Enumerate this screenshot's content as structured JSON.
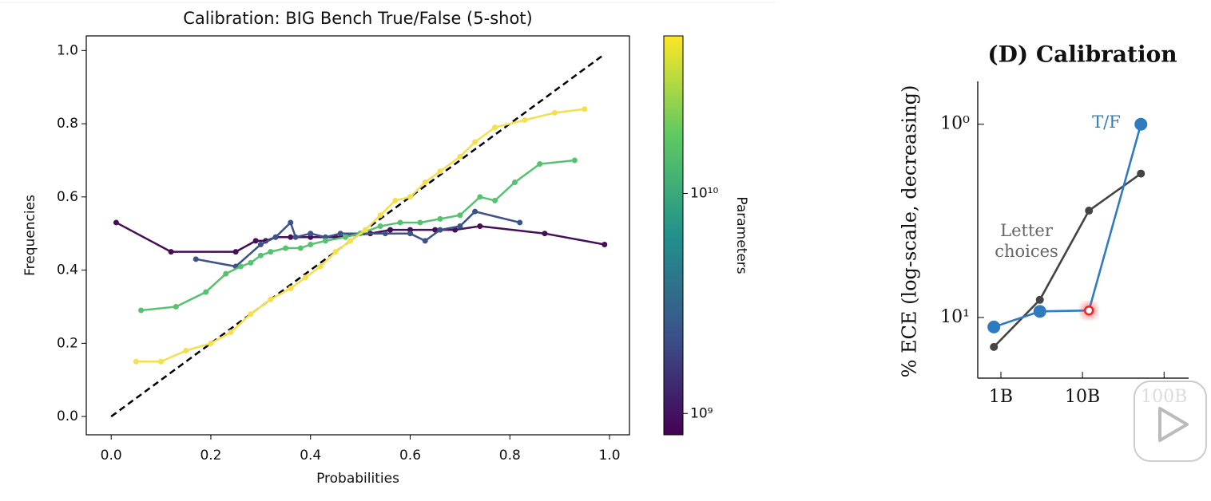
{
  "chart_data": [
    {
      "type": "line",
      "title": "Calibration: BIG Bench True/False (5-shot)",
      "x_label": "Probabilities",
      "y_label": "Frequencies",
      "xlim": [
        -0.05,
        1.04
      ],
      "ylim": [
        -0.05,
        1.04
      ],
      "xticks": [
        {
          "value": 0,
          "label": "0.0"
        },
        0.2,
        0.4,
        0.6,
        0.8,
        {
          "value": 1,
          "label": "1.0"
        }
      ],
      "yticks": [
        {
          "value": 0,
          "label": "0.0"
        },
        0.2,
        0.4,
        0.6,
        0.8,
        {
          "value": 1,
          "label": "1.0"
        }
      ],
      "colorbar": {
        "label": "Parameters",
        "scale": "log",
        "lim": [
          800000000,
          52000000000
        ],
        "ticks": [
          {
            "value": 1000000000,
            "label": "10⁹"
          },
          {
            "value": 10000000000,
            "label": "10¹⁰"
          }
        ]
      },
      "series": [
        {
          "color": "#000000",
          "dashed": true,
          "marker": false,
          "x": [
            0,
            0.99
          ],
          "values": [
            0,
            0.99
          ]
        },
        {
          "color": "#440f56",
          "x": [
            0.01,
            0.12,
            0.25,
            0.29,
            0.31,
            0.33,
            0.36,
            0.4,
            0.45,
            0.52,
            0.56,
            0.6,
            0.65,
            0.69,
            0.74,
            0.87,
            0.99
          ],
          "values": [
            0.53,
            0.45,
            0.45,
            0.48,
            0.48,
            0.49,
            0.49,
            0.49,
            0.49,
            0.5,
            0.51,
            0.51,
            0.51,
            0.51,
            0.52,
            0.5,
            0.47
          ]
        },
        {
          "color": "#3b528b",
          "x": [
            0.17,
            0.25,
            0.3,
            0.33,
            0.36,
            0.37,
            0.4,
            0.43,
            0.46,
            0.5,
            0.55,
            0.6,
            0.63,
            0.66,
            0.7,
            0.73,
            0.82
          ],
          "values": [
            0.43,
            0.41,
            0.47,
            0.49,
            0.53,
            0.49,
            0.5,
            0.49,
            0.5,
            0.5,
            0.5,
            0.5,
            0.48,
            0.51,
            0.52,
            0.56,
            0.53
          ]
        },
        {
          "color": "#56c271",
          "x": [
            0.06,
            0.13,
            0.19,
            0.23,
            0.26,
            0.28,
            0.3,
            0.32,
            0.35,
            0.38,
            0.4,
            0.43,
            0.47,
            0.5,
            0.54,
            0.58,
            0.62,
            0.66,
            0.7,
            0.74,
            0.77,
            0.81,
            0.86,
            0.93
          ],
          "values": [
            0.29,
            0.3,
            0.34,
            0.39,
            0.41,
            0.42,
            0.44,
            0.45,
            0.46,
            0.46,
            0.47,
            0.48,
            0.49,
            0.5,
            0.52,
            0.53,
            0.53,
            0.54,
            0.55,
            0.6,
            0.59,
            0.64,
            0.69,
            0.7
          ]
        },
        {
          "color": "#f6df4c",
          "x": [
            0.05,
            0.1,
            0.15,
            0.2,
            0.24,
            0.28,
            0.32,
            0.36,
            0.39,
            0.42,
            0.45,
            0.48,
            0.51,
            0.54,
            0.57,
            0.6,
            0.63,
            0.66,
            0.7,
            0.73,
            0.77,
            0.83,
            0.89,
            0.95
          ],
          "values": [
            0.15,
            0.15,
            0.18,
            0.2,
            0.23,
            0.28,
            0.32,
            0.35,
            0.38,
            0.41,
            0.45,
            0.48,
            0.51,
            0.55,
            0.59,
            0.6,
            0.64,
            0.67,
            0.71,
            0.75,
            0.79,
            0.81,
            0.83,
            0.84
          ]
        }
      ]
    },
    {
      "type": "line",
      "title": "(D) Calibration",
      "y_label": "% ECE (log-scale, decreasing)",
      "xscale": "log",
      "yscale": "log",
      "y_inverted": true,
      "xlim": [
        520000000,
        200000000000
      ],
      "ylim": [
        0.6,
        20.6
      ],
      "xticks": [
        {
          "value": 1000000000,
          "label": "1B"
        },
        {
          "value": 10000000000,
          "label": "10B"
        },
        {
          "value": 100000000000,
          "label": "100B"
        }
      ],
      "yticks": [
        {
          "value": 1,
          "label": "10⁰"
        },
        {
          "value": 10,
          "label": "10¹"
        }
      ],
      "series": [
        {
          "name": "Letter choices",
          "color": "#444444",
          "marker_size": 5,
          "x": [
            820000000,
            3000000000,
            12000000000,
            52000000000
          ],
          "values": [
            14.2,
            8.1,
            2.8,
            1.8
          ]
        },
        {
          "name": "T/F",
          "color": "#2f7bbf",
          "marker_size": 8,
          "highlight": [
            2
          ],
          "x": [
            820000000,
            3000000000,
            12000000000,
            52000000000
          ],
          "values": [
            11.2,
            9.3,
            9.2,
            1.0
          ]
        }
      ]
    }
  ]
}
